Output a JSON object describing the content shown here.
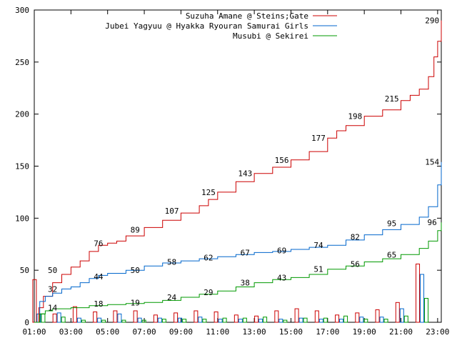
{
  "chart_data": {
    "type": "line",
    "y_ticks": [
      0,
      50,
      100,
      150,
      200,
      250,
      300
    ],
    "ylim": [
      0,
      300
    ],
    "x_ticks": [
      "01:00",
      "03:00",
      "05:00",
      "07:00",
      "09:00",
      "11:00",
      "13:00",
      "15:00",
      "17:00",
      "19:00",
      "21:00",
      "23:00"
    ],
    "xlim_hours": [
      1,
      23.2
    ],
    "grid": false,
    "legend_position": "top-right",
    "series": [
      {
        "name": "Suzuha Amane @ Steins;Gate",
        "color": "#cc0000",
        "points": [
          [
            1.0,
            0
          ],
          [
            1.25,
            14
          ],
          [
            1.5,
            25
          ],
          [
            2.0,
            38
          ],
          [
            2.5,
            46
          ],
          [
            3.0,
            53
          ],
          [
            3.5,
            59
          ],
          [
            4.0,
            68
          ],
          [
            4.5,
            74
          ],
          [
            5.0,
            76
          ],
          [
            5.5,
            78
          ],
          [
            6.0,
            83
          ],
          [
            7.0,
            91
          ],
          [
            8.0,
            98
          ],
          [
            9.0,
            105
          ],
          [
            10.0,
            112
          ],
          [
            10.5,
            118
          ],
          [
            11.0,
            125
          ],
          [
            12.0,
            135
          ],
          [
            13.0,
            143
          ],
          [
            14.0,
            149
          ],
          [
            15.0,
            156
          ],
          [
            16.0,
            164
          ],
          [
            17.0,
            177
          ],
          [
            17.5,
            184
          ],
          [
            18.0,
            189
          ],
          [
            19.0,
            198
          ],
          [
            20.0,
            204
          ],
          [
            21.0,
            213
          ],
          [
            21.5,
            218
          ],
          [
            22.0,
            224
          ],
          [
            22.5,
            236
          ],
          [
            22.8,
            255
          ],
          [
            23.0,
            270
          ],
          [
            23.2,
            290
          ]
        ],
        "labels": [
          {
            "x": 2.0,
            "y": 50,
            "t": "50"
          },
          {
            "x": 4.5,
            "y": 76,
            "t": "76"
          },
          {
            "x": 6.5,
            "y": 89,
            "t": "89"
          },
          {
            "x": 8.5,
            "y": 107,
            "t": "107"
          },
          {
            "x": 10.5,
            "y": 125,
            "t": "125"
          },
          {
            "x": 12.5,
            "y": 143,
            "t": "143"
          },
          {
            "x": 14.5,
            "y": 156,
            "t": "156"
          },
          {
            "x": 16.5,
            "y": 177,
            "t": "177"
          },
          {
            "x": 18.5,
            "y": 198,
            "t": "198"
          },
          {
            "x": 20.5,
            "y": 215,
            "t": "215"
          },
          {
            "x": 22.7,
            "y": 290,
            "t": "290"
          }
        ]
      },
      {
        "name": "Jubei Yagyuu @ Hyakka Ryouran Samurai Girls",
        "color": "#0066cc",
        "points": [
          [
            1.0,
            0
          ],
          [
            1.3,
            20
          ],
          [
            1.6,
            25
          ],
          [
            2.0,
            28
          ],
          [
            2.5,
            32
          ],
          [
            3.0,
            34
          ],
          [
            3.5,
            38
          ],
          [
            4.0,
            42
          ],
          [
            4.5,
            45
          ],
          [
            5.0,
            47
          ],
          [
            6.0,
            50
          ],
          [
            7.0,
            54
          ],
          [
            8.0,
            57
          ],
          [
            9.0,
            59
          ],
          [
            10.0,
            61
          ],
          [
            11.0,
            63
          ],
          [
            12.0,
            65
          ],
          [
            13.0,
            67
          ],
          [
            14.0,
            68
          ],
          [
            15.0,
            70
          ],
          [
            16.0,
            72
          ],
          [
            17.0,
            74
          ],
          [
            18.0,
            79
          ],
          [
            19.0,
            84
          ],
          [
            20.0,
            89
          ],
          [
            21.0,
            94
          ],
          [
            22.0,
            101
          ],
          [
            22.5,
            111
          ],
          [
            23.0,
            132
          ],
          [
            23.2,
            154
          ]
        ],
        "labels": [
          {
            "x": 2.0,
            "y": 32,
            "t": "32"
          },
          {
            "x": 4.5,
            "y": 44,
            "t": "44"
          },
          {
            "x": 6.5,
            "y": 50,
            "t": "50"
          },
          {
            "x": 8.5,
            "y": 58,
            "t": "58"
          },
          {
            "x": 10.5,
            "y": 62,
            "t": "62"
          },
          {
            "x": 12.5,
            "y": 67,
            "t": "67"
          },
          {
            "x": 14.5,
            "y": 69,
            "t": "69"
          },
          {
            "x": 16.5,
            "y": 74,
            "t": "74"
          },
          {
            "x": 18.5,
            "y": 82,
            "t": "82"
          },
          {
            "x": 20.5,
            "y": 95,
            "t": "95"
          },
          {
            "x": 22.7,
            "y": 154,
            "t": "154"
          }
        ]
      },
      {
        "name": "Musubi @ Sekirei",
        "color": "#009900",
        "points": [
          [
            1.0,
            0
          ],
          [
            1.3,
            8
          ],
          [
            1.6,
            11
          ],
          [
            2.0,
            13
          ],
          [
            3.0,
            14
          ],
          [
            4.0,
            16
          ],
          [
            5.0,
            17
          ],
          [
            6.0,
            18
          ],
          [
            7.0,
            19
          ],
          [
            8.0,
            21
          ],
          [
            9.0,
            24
          ],
          [
            10.0,
            27
          ],
          [
            11.0,
            30
          ],
          [
            12.0,
            34
          ],
          [
            13.0,
            38
          ],
          [
            14.0,
            41
          ],
          [
            15.0,
            43
          ],
          [
            16.0,
            46
          ],
          [
            17.0,
            51
          ],
          [
            18.0,
            54
          ],
          [
            19.0,
            58
          ],
          [
            20.0,
            61
          ],
          [
            21.0,
            65
          ],
          [
            22.0,
            71
          ],
          [
            22.5,
            78
          ],
          [
            23.0,
            88
          ],
          [
            23.2,
            96
          ]
        ],
        "labels": [
          {
            "x": 2.0,
            "y": 14,
            "t": "14"
          },
          {
            "x": 4.5,
            "y": 18,
            "t": "18"
          },
          {
            "x": 6.5,
            "y": 19,
            "t": "19"
          },
          {
            "x": 8.5,
            "y": 24,
            "t": "24"
          },
          {
            "x": 10.5,
            "y": 29,
            "t": "29"
          },
          {
            "x": 12.5,
            "y": 38,
            "t": "38"
          },
          {
            "x": 14.5,
            "y": 43,
            "t": "43"
          },
          {
            "x": 16.5,
            "y": 51,
            "t": "51"
          },
          {
            "x": 18.5,
            "y": 56,
            "t": "56"
          },
          {
            "x": 20.5,
            "y": 65,
            "t": "65"
          },
          {
            "x": 22.7,
            "y": 96,
            "t": "96"
          }
        ]
      }
    ],
    "hourly_bars": [
      {
        "series": 0,
        "values": [
          41,
          8,
          15,
          10,
          11,
          11,
          7,
          9,
          11,
          10,
          7,
          6,
          11,
          13,
          11,
          7,
          9,
          12,
          19,
          56
        ]
      },
      {
        "series": 1,
        "values": [
          8,
          9,
          4,
          4,
          8,
          4,
          4,
          4,
          5,
          3,
          3,
          3,
          3,
          4,
          3,
          3,
          5,
          5,
          13,
          46
        ]
      },
      {
        "series": 2,
        "values": [
          8,
          5,
          2,
          2,
          2,
          2,
          3,
          3,
          3,
          4,
          4,
          5,
          2,
          4,
          4,
          6,
          3,
          3,
          6,
          23
        ]
      }
    ]
  }
}
